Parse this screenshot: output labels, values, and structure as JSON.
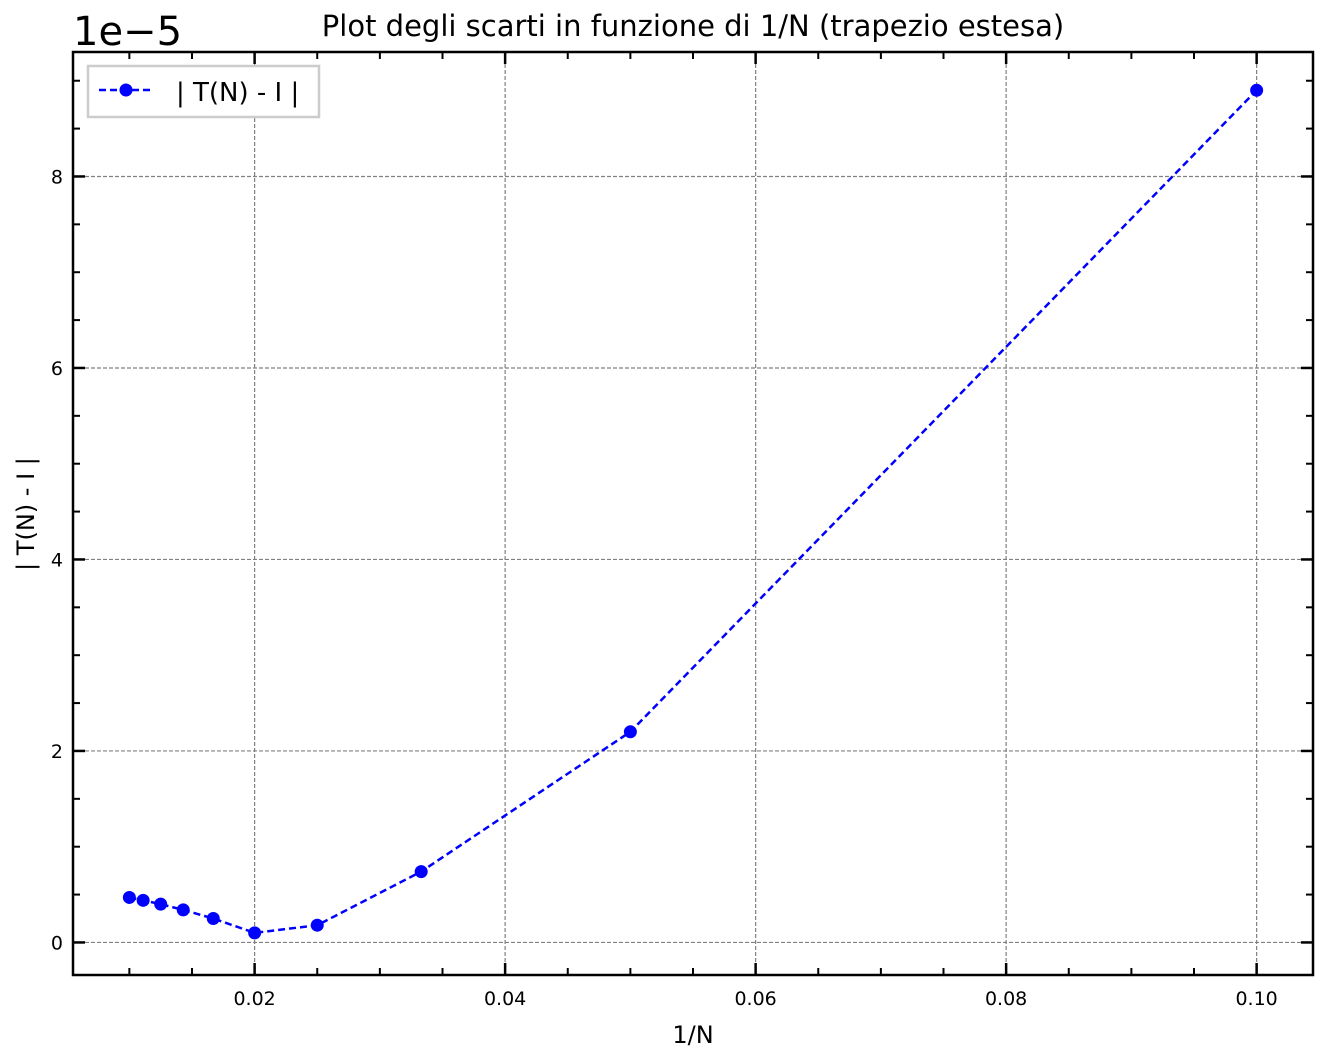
{
  "chart_data": {
    "type": "line",
    "title": "Plot degli scarti in funzione di 1/N (trapezio estesa)",
    "xlabel": "1/N",
    "ylabel": "| T(N) - I |",
    "offset_text": "1e−5",
    "y_scale_factor": 1e-05,
    "xlim": [
      0.0055,
      0.1045
    ],
    "ylim": [
      -0.34,
      9.3
    ],
    "x_ticks": [
      0.02,
      0.04,
      0.06,
      0.08,
      0.1
    ],
    "x_tick_labels": [
      "0.02",
      "0.04",
      "0.06",
      "0.08",
      "0.10"
    ],
    "x_minor_step": 0.005,
    "y_ticks": [
      0,
      2,
      4,
      6,
      8
    ],
    "y_tick_labels": [
      "0",
      "2",
      "4",
      "6",
      "8"
    ],
    "y_minor_step": 0.5,
    "grid": true,
    "legend_position": "top-left",
    "series": [
      {
        "name": "| T(N) - I |",
        "color": "#0000ff",
        "line_style": "dashed",
        "marker": "circle",
        "x": [
          0.01,
          0.0111,
          0.0125,
          0.0143,
          0.0167,
          0.02,
          0.025,
          0.0333,
          0.05,
          0.1
        ],
        "y": [
          0.47,
          0.44,
          0.4,
          0.34,
          0.25,
          0.1,
          0.18,
          0.74,
          2.2,
          8.9
        ]
      }
    ]
  }
}
